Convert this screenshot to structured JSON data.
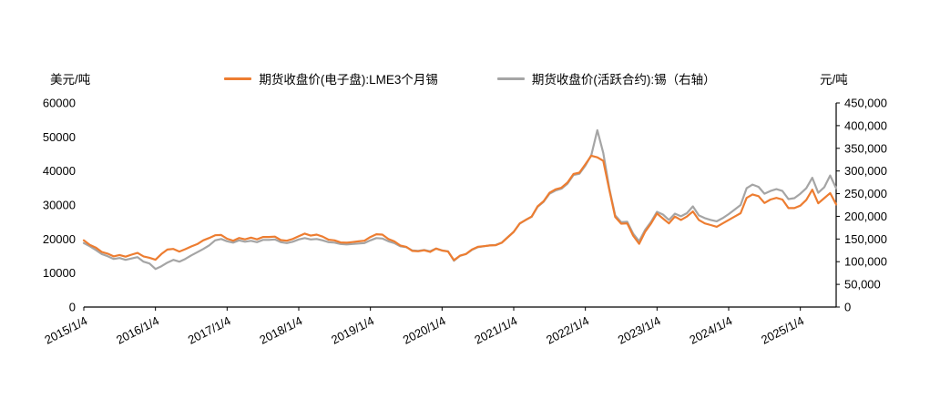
{
  "header": {
    "left_unit": "美元/吨",
    "right_unit": "元/吨"
  },
  "legend": {
    "items": [
      {
        "label": "期货收盘价(电子盘):LME3个月锡",
        "color": "#ED7D31"
      },
      {
        "label": "期货收盘价(活跃合约):锡（右轴）",
        "color": "#A5A5A5"
      }
    ]
  },
  "chart_data": {
    "type": "line",
    "title": "",
    "x_start": "2015/1",
    "x_end": "2025/7",
    "x_frequency": "monthly",
    "legend_position": "top-center",
    "grid": false,
    "x_ticks": [
      {
        "label": "2015/1/4",
        "index": 0
      },
      {
        "label": "2016/1/4",
        "index": 12
      },
      {
        "label": "2017/1/4",
        "index": 24
      },
      {
        "label": "2018/1/4",
        "index": 36
      },
      {
        "label": "2019/1/4",
        "index": 48
      },
      {
        "label": "2020/1/4",
        "index": 60
      },
      {
        "label": "2021/1/4",
        "index": 72
      },
      {
        "label": "2022/1/4",
        "index": 84
      },
      {
        "label": "2023/1/4",
        "index": 96
      },
      {
        "label": "2024/1/4",
        "index": 108
      },
      {
        "label": "2025/1/4",
        "index": 120
      }
    ],
    "left_axis": {
      "title": "美元/吨",
      "min": 0,
      "max": 60000,
      "step": 10000
    },
    "right_axis": {
      "title": "元/吨",
      "min": 0,
      "max": 450000,
      "step": 50000
    },
    "series": [
      {
        "name": "期货收盘价(电子盘):LME3个月锡",
        "axis": "left",
        "color": "#ED7D31",
        "unit": "美元/吨",
        "values": [
          19600,
          18300,
          17500,
          16200,
          15700,
          14900,
          15300,
          14800,
          15400,
          15900,
          14900,
          14500,
          13900,
          15600,
          16900,
          17100,
          16300,
          17000,
          17800,
          18500,
          19600,
          20300,
          21100,
          21200,
          20100,
          19500,
          20300,
          19900,
          20400,
          19900,
          20600,
          20600,
          20700,
          19700,
          19500,
          20000,
          20800,
          21600,
          21000,
          21300,
          20700,
          19800,
          19600,
          19000,
          18900,
          19100,
          19300,
          19500,
          20600,
          21400,
          21300,
          20000,
          19300,
          18100,
          17700,
          16500,
          16400,
          16700,
          16200,
          17200,
          16600,
          16300,
          13800,
          15100,
          15600,
          16900,
          17700,
          17900,
          18100,
          18200,
          18900,
          20500,
          22100,
          24600,
          25600,
          26600,
          29600,
          31100,
          33600,
          34600,
          35100,
          36600,
          39100,
          39500,
          42000,
          44500,
          44000,
          43000,
          34500,
          26500,
          24500,
          24600,
          21000,
          18600,
          22100,
          24600,
          27500,
          26000,
          24600,
          26600,
          25600,
          26600,
          28100,
          25600,
          24600,
          24100,
          23600,
          24600,
          25600,
          26600,
          27600,
          32100,
          33100,
          32600,
          30600,
          31600,
          32100,
          31600,
          29100,
          29100,
          29800,
          31500,
          34500,
          30500,
          32000,
          33500,
          30200
        ]
      },
      {
        "name": "期货收盘价(活跃合约):锡（右轴）",
        "axis": "right",
        "color": "#A5A5A5",
        "unit": "元/吨",
        "values": [
          141000,
          134000,
          126000,
          117000,
          112000,
          106000,
          108000,
          104000,
          107000,
          110000,
          100000,
          96000,
          84000,
          90000,
          98000,
          104000,
          100000,
          106000,
          114000,
          121000,
          128000,
          136000,
          147000,
          150000,
          145000,
          142000,
          147000,
          144000,
          146000,
          143000,
          148000,
          148000,
          149000,
          143000,
          141000,
          144000,
          149000,
          152000,
          149000,
          150000,
          147000,
          143000,
          142000,
          139000,
          138000,
          139000,
          140000,
          141000,
          147000,
          152000,
          151000,
          145000,
          141000,
          134000,
          132000,
          125000,
          124000,
          126000,
          123000,
          129000,
          125000,
          123000,
          102000,
          113000,
          117000,
          126000,
          132000,
          134000,
          136000,
          137000,
          142000,
          154000,
          166000,
          184000,
          192000,
          199000,
          221000,
          232000,
          250000,
          257000,
          261000,
          272000,
          291000,
          294000,
          312000,
          335000,
          390000,
          340000,
          262000,
          202000,
          187000,
          188000,
          162000,
          145000,
          170000,
          188000,
          210000,
          204000,
          192000,
          206000,
          200000,
          207000,
          222000,
          202000,
          196000,
          192000,
          189000,
          196000,
          205000,
          215000,
          225000,
          262000,
          270000,
          265000,
          250000,
          256000,
          260000,
          256000,
          238000,
          240000,
          250000,
          262000,
          285000,
          252000,
          264000,
          290000,
          262000
        ]
      }
    ]
  }
}
